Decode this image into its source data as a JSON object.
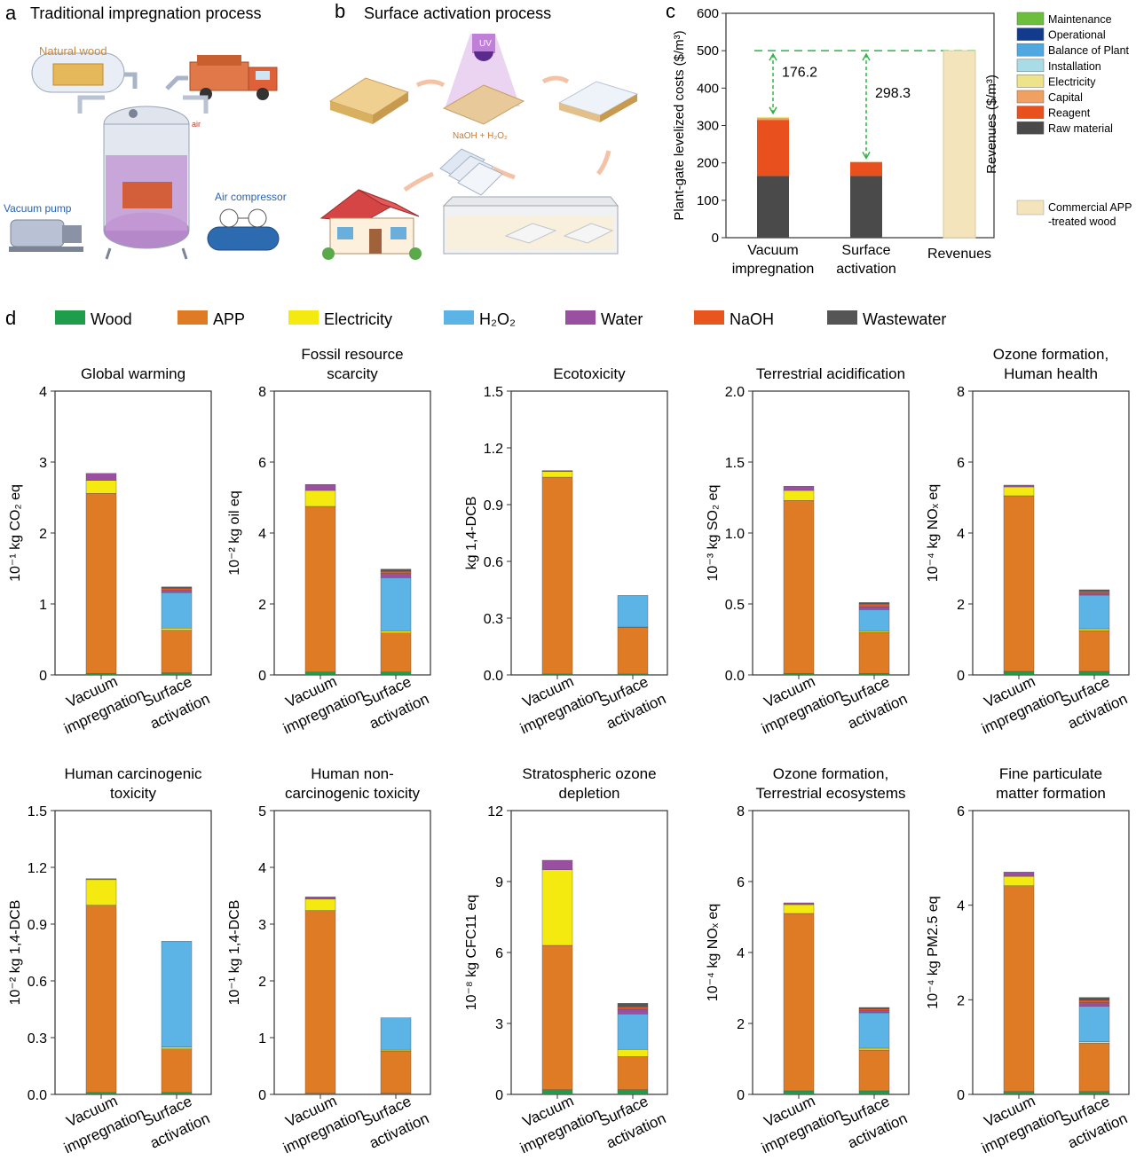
{
  "colors": {
    "wood": "#1e9e4a",
    "app": "#e07b25",
    "electricity": "#f5ea10",
    "h2o2": "#5bb3e6",
    "water": "#9a4fa0",
    "naoh": "#e8551e",
    "wastewater": "#555555",
    "maintenance": "#6cbf3a",
    "operational": "#123b8c",
    "balance": "#4fa9e0",
    "installation": "#a8dde8",
    "elec_c": "#ede38a",
    "capital": "#f0a060",
    "reagent": "#e8501e",
    "raw": "#4a4a4a",
    "commercial": "#f3e4bc"
  },
  "panel_a": {
    "letter": "a",
    "title": "Traditional impregnation process",
    "labels": {
      "natural_wood": "Natural wood",
      "vacuum_pump": "Vacuum pump",
      "air_compressor": "Air compressor",
      "air": "air"
    }
  },
  "panel_b": {
    "letter": "b",
    "title": "Surface activation process",
    "labels": {
      "uv": "UV",
      "reagent": "NaOH + H₂O₂"
    }
  },
  "chart_data": [
    {
      "id": "c",
      "type": "bar",
      "letter": "c",
      "ylabel": "Plant-gate levelized costs ($/m³)",
      "ylabel_right": "Revenues ($/m³)",
      "ylim": [
        0,
        600
      ],
      "yticks": [
        0,
        100,
        200,
        300,
        400,
        500,
        600
      ],
      "categories": [
        [
          "Vacuum",
          "impregnation"
        ],
        [
          "Surface",
          "activation"
        ],
        [
          "Revenues"
        ]
      ],
      "series": [
        {
          "name": "Raw material",
          "color_key": "raw",
          "values": [
            165,
            165,
            0
          ]
        },
        {
          "name": "Reagent",
          "color_key": "reagent",
          "values": [
            150,
            37,
            0
          ]
        },
        {
          "name": "Capital",
          "color_key": "capital",
          "values": [
            5,
            1,
            0
          ]
        },
        {
          "name": "Electricity",
          "color_key": "elec_c",
          "values": [
            3,
            0,
            0
          ]
        },
        {
          "name": "Installation",
          "color_key": "installation",
          "values": [
            0,
            0,
            0
          ]
        },
        {
          "name": "Balance of Plant",
          "color_key": "balance",
          "values": [
            0,
            0,
            0
          ]
        },
        {
          "name": "Operational",
          "color_key": "operational",
          "values": [
            0,
            0,
            0
          ]
        },
        {
          "name": "Maintenance",
          "color_key": "maintenance",
          "values": [
            0,
            0,
            0
          ]
        },
        {
          "name": "Commercial APP -treated wood",
          "color_key": "commercial",
          "values": [
            0,
            0,
            500
          ]
        }
      ],
      "reference_line": 500,
      "annotations": [
        {
          "bar": 0,
          "text": "176.2"
        },
        {
          "bar": 1,
          "text": "298.3"
        }
      ],
      "legend": {
        "items": [
          {
            "label": "Maintenance",
            "color_key": "maintenance"
          },
          {
            "label": "Operational",
            "color_key": "operational"
          },
          {
            "label": "Balance of Plant",
            "color_key": "balance"
          },
          {
            "label": "Installation",
            "color_key": "installation"
          },
          {
            "label": "Electricity",
            "color_key": "elec_c"
          },
          {
            "label": "Capital",
            "color_key": "capital"
          },
          {
            "label": "Reagent",
            "color_key": "reagent"
          },
          {
            "label": "Raw material",
            "color_key": "raw"
          }
        ],
        "commercial_lines": [
          "Commercial APP",
          "-treated wood"
        ]
      }
    },
    {
      "id": "d",
      "type": "bar",
      "letter": "d",
      "legend": [
        {
          "label": "Wood",
          "color_key": "wood"
        },
        {
          "label": "APP",
          "color_key": "app"
        },
        {
          "label": "Electricity",
          "color_key": "electricity"
        },
        {
          "label": "H₂O₂",
          "color_key": "h2o2"
        },
        {
          "label": "Water",
          "color_key": "water"
        },
        {
          "label": "NaOH",
          "color_key": "naoh"
        },
        {
          "label": "Wastewater",
          "color_key": "wastewater"
        }
      ],
      "categories": [
        [
          "Vacuum",
          "impregnation"
        ],
        [
          "Surface",
          "activation"
        ]
      ],
      "stack_order": [
        "wood",
        "app",
        "electricity",
        "h2o2",
        "water",
        "naoh",
        "wastewater"
      ],
      "subplots": [
        {
          "title": [
            "Global warming"
          ],
          "ylabel": "10⁻¹ kg CO₂ eq",
          "ylim": [
            0,
            4
          ],
          "yticks": [
            "0",
            "1",
            "2",
            "3",
            "4"
          ],
          "bars": [
            {
              "wood": 0.02,
              "app": 2.54,
              "water": 0.1,
              "electricity": 0.18
            },
            {
              "wood": 0.03,
              "app": 0.6,
              "electricity": 0.03,
              "h2o2": 0.5,
              "water": 0.03,
              "naoh": 0.03,
              "wastewater": 0.02
            }
          ]
        },
        {
          "title": [
            "Fossil resource",
            "scarcity"
          ],
          "ylabel": "10⁻² kg oil eq",
          "ylim": [
            0,
            8
          ],
          "yticks": [
            "0",
            "2",
            "4",
            "6",
            "8"
          ],
          "bars": [
            {
              "wood": 0.08,
              "app": 4.67,
              "water": 0.17,
              "electricity": 0.45
            },
            {
              "wood": 0.08,
              "app": 1.1,
              "electricity": 0.06,
              "h2o2": 1.5,
              "water": 0.12,
              "naoh": 0.06,
              "wastewater": 0.06
            }
          ]
        },
        {
          "title": [
            "Ecotoxicity"
          ],
          "ylabel": "kg 1,4-DCB",
          "ylim": [
            0,
            1.5
          ],
          "yticks": [
            "0.0",
            "0.3",
            "0.6",
            "0.9",
            "1.2",
            "1.5"
          ],
          "bars": [
            {
              "wood": 0.005,
              "app": 1.04,
              "water": 0.005,
              "electricity": 0.03
            },
            {
              "wood": 0.005,
              "app": 0.245,
              "electricity": 0.003,
              "h2o2": 0.167
            }
          ]
        },
        {
          "title": [
            "Terrestrial acidification"
          ],
          "ylabel": "10⁻³ kg SO₂ eq",
          "ylim": [
            0,
            2.0
          ],
          "yticks": [
            "0.0",
            "0.5",
            "1.0",
            "1.5",
            "2.0"
          ],
          "bars": [
            {
              "wood": 0.01,
              "app": 1.22,
              "water": 0.03,
              "electricity": 0.07
            },
            {
              "wood": 0.01,
              "app": 0.29,
              "electricity": 0.01,
              "h2o2": 0.15,
              "water": 0.02,
              "naoh": 0.02,
              "wastewater": 0.01
            }
          ]
        },
        {
          "title": [
            "Ozone formation,",
            "Human health"
          ],
          "ylabel": "10⁻⁴ kg NOₓ eq",
          "ylim": [
            0,
            8
          ],
          "yticks": [
            "0",
            "2",
            "4",
            "6",
            "8"
          ],
          "bars": [
            {
              "wood": 0.1,
              "app": 4.95,
              "water": 0.05,
              "electricity": 0.25
            },
            {
              "wood": 0.1,
              "app": 1.15,
              "electricity": 0.05,
              "h2o2": 0.95,
              "water": 0.06,
              "naoh": 0.05,
              "wastewater": 0.04
            }
          ]
        },
        {
          "title": [
            "Human carcinogenic",
            "toxicity"
          ],
          "ylabel": "10⁻² kg 1,4-DCB",
          "ylim": [
            0,
            1.5
          ],
          "yticks": [
            "0.0",
            "0.3",
            "0.6",
            "0.9",
            "1.2",
            "1.5"
          ],
          "bars": [
            {
              "wood": 0.01,
              "app": 0.99,
              "water": 0.005,
              "electricity": 0.135
            },
            {
              "wood": 0.01,
              "app": 0.23,
              "electricity": 0.01,
              "h2o2": 0.56
            }
          ]
        },
        {
          "title": [
            "Human non-",
            "carcinogenic toxicity"
          ],
          "ylabel": "10⁻¹ kg 1,4-DCB",
          "ylim": [
            0,
            5
          ],
          "yticks": [
            "0",
            "1",
            "2",
            "3",
            "4",
            "5"
          ],
          "bars": [
            {
              "wood": 0.02,
              "app": 3.22,
              "water": 0.04,
              "electricity": 0.2
            },
            {
              "wood": 0.02,
              "app": 0.74,
              "electricity": 0.02,
              "h2o2": 0.57
            }
          ]
        },
        {
          "title": [
            "Stratospheric ozone",
            "depletion"
          ],
          "ylabel": "10⁻⁸ kg CFC11 eq",
          "ylim": [
            0,
            12
          ],
          "yticks": [
            "0",
            "3",
            "6",
            "9",
            "12"
          ],
          "bars": [
            {
              "wood": 0.2,
              "app": 6.1,
              "water": 0.4,
              "electricity": 3.2
            },
            {
              "wood": 0.2,
              "app": 1.4,
              "water": 0.2,
              "electricity": 0.3,
              "h2o2": 1.5,
              "naoh": 0.1,
              "wastewater": 0.15
            }
          ]
        },
        {
          "title": [
            "Ozone formation,",
            "Terrestrial ecosystems"
          ],
          "ylabel": "10⁻⁴ kg NOₓ eq",
          "ylim": [
            0,
            8
          ],
          "yticks": [
            "0",
            "2",
            "4",
            "6",
            "8"
          ],
          "bars": [
            {
              "wood": 0.1,
              "app": 5.0,
              "water": 0.05,
              "electricity": 0.25
            },
            {
              "wood": 0.1,
              "app": 1.15,
              "electricity": 0.05,
              "h2o2": 1.0,
              "water": 0.06,
              "naoh": 0.05,
              "wastewater": 0.04
            }
          ]
        },
        {
          "title": [
            "Fine particulate",
            "matter formation"
          ],
          "ylabel": "10⁻⁴ kg PM2.5 eq",
          "ylim": [
            0,
            6
          ],
          "yticks": [
            "0",
            "2",
            "4",
            "6"
          ],
          "bars": [
            {
              "wood": 0.06,
              "app": 4.35,
              "water": 0.09,
              "electricity": 0.2
            },
            {
              "wood": 0.06,
              "app": 1.02,
              "electricity": 0.03,
              "h2o2": 0.75,
              "water": 0.08,
              "naoh": 0.05,
              "wastewater": 0.06
            }
          ]
        }
      ]
    }
  ]
}
